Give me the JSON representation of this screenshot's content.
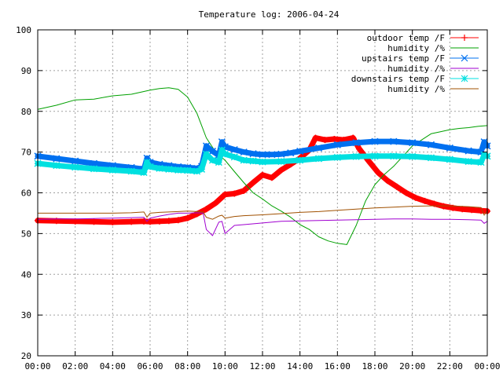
{
  "chart_data": {
    "type": "line",
    "title": "Temperature log: 2006-04-24",
    "xlabel": "",
    "ylabel": "",
    "xlim": [
      "00:00",
      "24:00"
    ],
    "ylim": [
      20,
      100
    ],
    "grid": true,
    "legend_position": "top-right",
    "x_ticks": [
      "00:00",
      "02:00",
      "04:00",
      "06:00",
      "08:00",
      "10:00",
      "12:00",
      "14:00",
      "16:00",
      "18:00",
      "20:00",
      "22:00",
      "00:00"
    ],
    "y_ticks": [
      "20",
      "30",
      "40",
      "50",
      "60",
      "70",
      "80",
      "90",
      "100"
    ],
    "series": [
      {
        "name": "outdoor temp /F",
        "color": "#ff0000",
        "marker": "plus",
        "x": [
          "00:00",
          "01:00",
          "02:00",
          "03:00",
          "04:00",
          "05:00",
          "05:40",
          "06:00",
          "06:30",
          "07:00",
          "07:30",
          "08:00",
          "08:30",
          "09:00",
          "09:30",
          "10:00",
          "10:30",
          "11:00",
          "11:30",
          "12:00",
          "12:30",
          "13:00",
          "13:30",
          "14:00",
          "14:30",
          "14:50",
          "15:20",
          "15:50",
          "16:20",
          "16:50",
          "17:10",
          "17:40",
          "18:10",
          "18:40",
          "19:10",
          "19:40",
          "20:10",
          "20:40",
          "21:10",
          "21:40",
          "22:10",
          "22:40",
          "23:10",
          "23:40",
          "24:00"
        ],
        "y": [
          53.2,
          53.1,
          53.0,
          52.9,
          52.8,
          52.9,
          53.0,
          52.9,
          53.0,
          53.1,
          53.3,
          53.8,
          54.8,
          56.0,
          57.5,
          59.6,
          59.8,
          60.5,
          62.5,
          64.4,
          63.7,
          65.6,
          67.0,
          68.5,
          70.5,
          73.5,
          73.0,
          73.2,
          73.0,
          73.5,
          70.8,
          67.8,
          65.0,
          63.0,
          61.5,
          60.0,
          58.8,
          58.0,
          57.3,
          56.7,
          56.3,
          56.0,
          55.8,
          55.6,
          55.5
        ]
      },
      {
        "name": "humidity /%",
        "color": "#00a000",
        "marker": "none",
        "x": [
          "00:00",
          "01:00",
          "02:00",
          "03:00",
          "04:00",
          "05:00",
          "06:00",
          "06:30",
          "07:00",
          "07:30",
          "08:00",
          "08:30",
          "09:00",
          "09:30",
          "10:00",
          "10:30",
          "11:00",
          "11:30",
          "12:00",
          "12:30",
          "13:00",
          "13:30",
          "14:00",
          "14:30",
          "15:00",
          "15:30",
          "16:00",
          "16:30",
          "17:00",
          "17:30",
          "18:00",
          "18:30",
          "19:00",
          "19:30",
          "20:00",
          "20:30",
          "21:00",
          "21:30",
          "22:00",
          "22:30",
          "23:00",
          "23:30",
          "24:00"
        ],
        "y": [
          80.5,
          81.5,
          82.8,
          83.0,
          83.8,
          84.2,
          85.2,
          85.6,
          85.8,
          85.4,
          83.5,
          79.5,
          73.5,
          70.0,
          68.0,
          65.2,
          62.5,
          60.0,
          58.5,
          56.8,
          55.5,
          54.0,
          52.2,
          51.0,
          49.2,
          48.2,
          47.6,
          47.3,
          52.0,
          58.0,
          62.0,
          64.5,
          66.5,
          69.0,
          71.5,
          73.0,
          74.5,
          75.0,
          75.5,
          75.8,
          76.0,
          76.3,
          76.5
        ]
      },
      {
        "name": "upstairs temp /F",
        "color": "#0070f0",
        "marker": "cross",
        "x": [
          "00:00",
          "01:00",
          "02:00",
          "03:00",
          "04:00",
          "05:00",
          "05:40",
          "05:50",
          "06:00",
          "06:30",
          "07:00",
          "07:30",
          "08:00",
          "08:30",
          "08:45",
          "09:00",
          "09:20",
          "09:40",
          "09:50",
          "10:00",
          "10:30",
          "11:00",
          "11:30",
          "12:00",
          "12:30",
          "13:00",
          "13:30",
          "14:00",
          "15:00",
          "16:00",
          "17:00",
          "18:00",
          "19:00",
          "20:00",
          "21:00",
          "22:00",
          "23:00",
          "23:40",
          "23:50",
          "24:00"
        ],
        "y": [
          69.0,
          68.4,
          67.8,
          67.2,
          66.7,
          66.2,
          65.8,
          68.5,
          67.5,
          67.0,
          66.7,
          66.4,
          66.2,
          66.0,
          66.5,
          71.5,
          70.2,
          69.2,
          72.5,
          71.3,
          70.6,
          70.0,
          69.6,
          69.4,
          69.4,
          69.5,
          69.8,
          70.2,
          71.0,
          71.8,
          72.3,
          72.6,
          72.6,
          72.3,
          71.8,
          71.0,
          70.3,
          70.0,
          72.5,
          71.5
        ]
      },
      {
        "name": "humidity /%",
        "color": "#a000d0",
        "marker": "none",
        "x": [
          "00:00",
          "01:00",
          "02:00",
          "03:00",
          "04:00",
          "05:00",
          "05:40",
          "05:50",
          "06:00",
          "06:30",
          "07:00",
          "07:30",
          "08:00",
          "08:30",
          "08:50",
          "09:00",
          "09:20",
          "09:40",
          "09:50",
          "10:00",
          "10:30",
          "11:00",
          "12:00",
          "13:00",
          "14:00",
          "15:00",
          "16:00",
          "17:00",
          "18:00",
          "19:00",
          "20:00",
          "21:00",
          "22:00",
          "23:00",
          "23:40",
          "23:50",
          "24:00"
        ],
        "y": [
          53.5,
          53.6,
          53.6,
          53.7,
          53.8,
          53.9,
          54.0,
          53.0,
          53.8,
          54.3,
          54.7,
          55.0,
          55.0,
          55.1,
          55.0,
          51.0,
          49.5,
          52.8,
          53.0,
          50.0,
          52.0,
          52.2,
          52.6,
          53.0,
          53.1,
          53.2,
          53.3,
          53.4,
          53.5,
          53.6,
          53.6,
          53.5,
          53.5,
          53.4,
          53.3,
          52.5,
          53.0
        ]
      },
      {
        "name": "downstairs temp /F",
        "color": "#00e0e0",
        "marker": "star",
        "x": [
          "00:00",
          "01:00",
          "02:00",
          "03:00",
          "04:00",
          "05:00",
          "05:40",
          "05:50",
          "06:00",
          "06:30",
          "07:00",
          "07:30",
          "08:00",
          "08:30",
          "08:45",
          "09:00",
          "09:20",
          "09:40",
          "09:50",
          "10:00",
          "10:30",
          "11:00",
          "11:30",
          "12:00",
          "13:00",
          "14:00",
          "15:00",
          "16:00",
          "17:00",
          "18:00",
          "19:00",
          "20:00",
          "21:00",
          "22:00",
          "23:00",
          "23:40",
          "23:50",
          "24:00"
        ],
        "y": [
          67.2,
          66.7,
          66.3,
          65.9,
          65.6,
          65.3,
          65.0,
          67.5,
          66.4,
          66.0,
          65.8,
          65.6,
          65.5,
          65.3,
          65.8,
          69.5,
          68.0,
          67.5,
          70.5,
          69.5,
          68.8,
          68.0,
          67.8,
          67.6,
          67.7,
          68.0,
          68.4,
          68.7,
          68.9,
          69.0,
          69.0,
          68.9,
          68.6,
          68.2,
          67.7,
          67.5,
          69.3,
          69.0
        ]
      },
      {
        "name": "humidity /%",
        "color": "#a05000",
        "marker": "none",
        "x": [
          "00:00",
          "01:00",
          "02:00",
          "03:00",
          "04:00",
          "05:00",
          "05:40",
          "05:50",
          "06:00",
          "06:30",
          "07:00",
          "07:30",
          "08:00",
          "08:30",
          "08:50",
          "09:00",
          "09:20",
          "09:40",
          "09:50",
          "10:00",
          "10:30",
          "11:00",
          "12:00",
          "13:00",
          "14:00",
          "15:00",
          "16:00",
          "17:00",
          "18:00",
          "19:00",
          "20:00",
          "21:00",
          "22:00",
          "23:00",
          "23:40",
          "23:50",
          "24:00"
        ],
        "y": [
          55.0,
          55.0,
          55.0,
          55.0,
          55.0,
          55.1,
          55.3,
          54.0,
          55.0,
          55.2,
          55.3,
          55.4,
          55.5,
          55.4,
          55.3,
          54.0,
          53.5,
          54.3,
          54.5,
          53.8,
          54.2,
          54.4,
          54.6,
          54.9,
          55.2,
          55.4,
          55.7,
          56.0,
          56.3,
          56.5,
          56.7,
          56.8,
          56.8,
          56.6,
          56.4,
          54.5,
          55.5
        ]
      }
    ]
  }
}
